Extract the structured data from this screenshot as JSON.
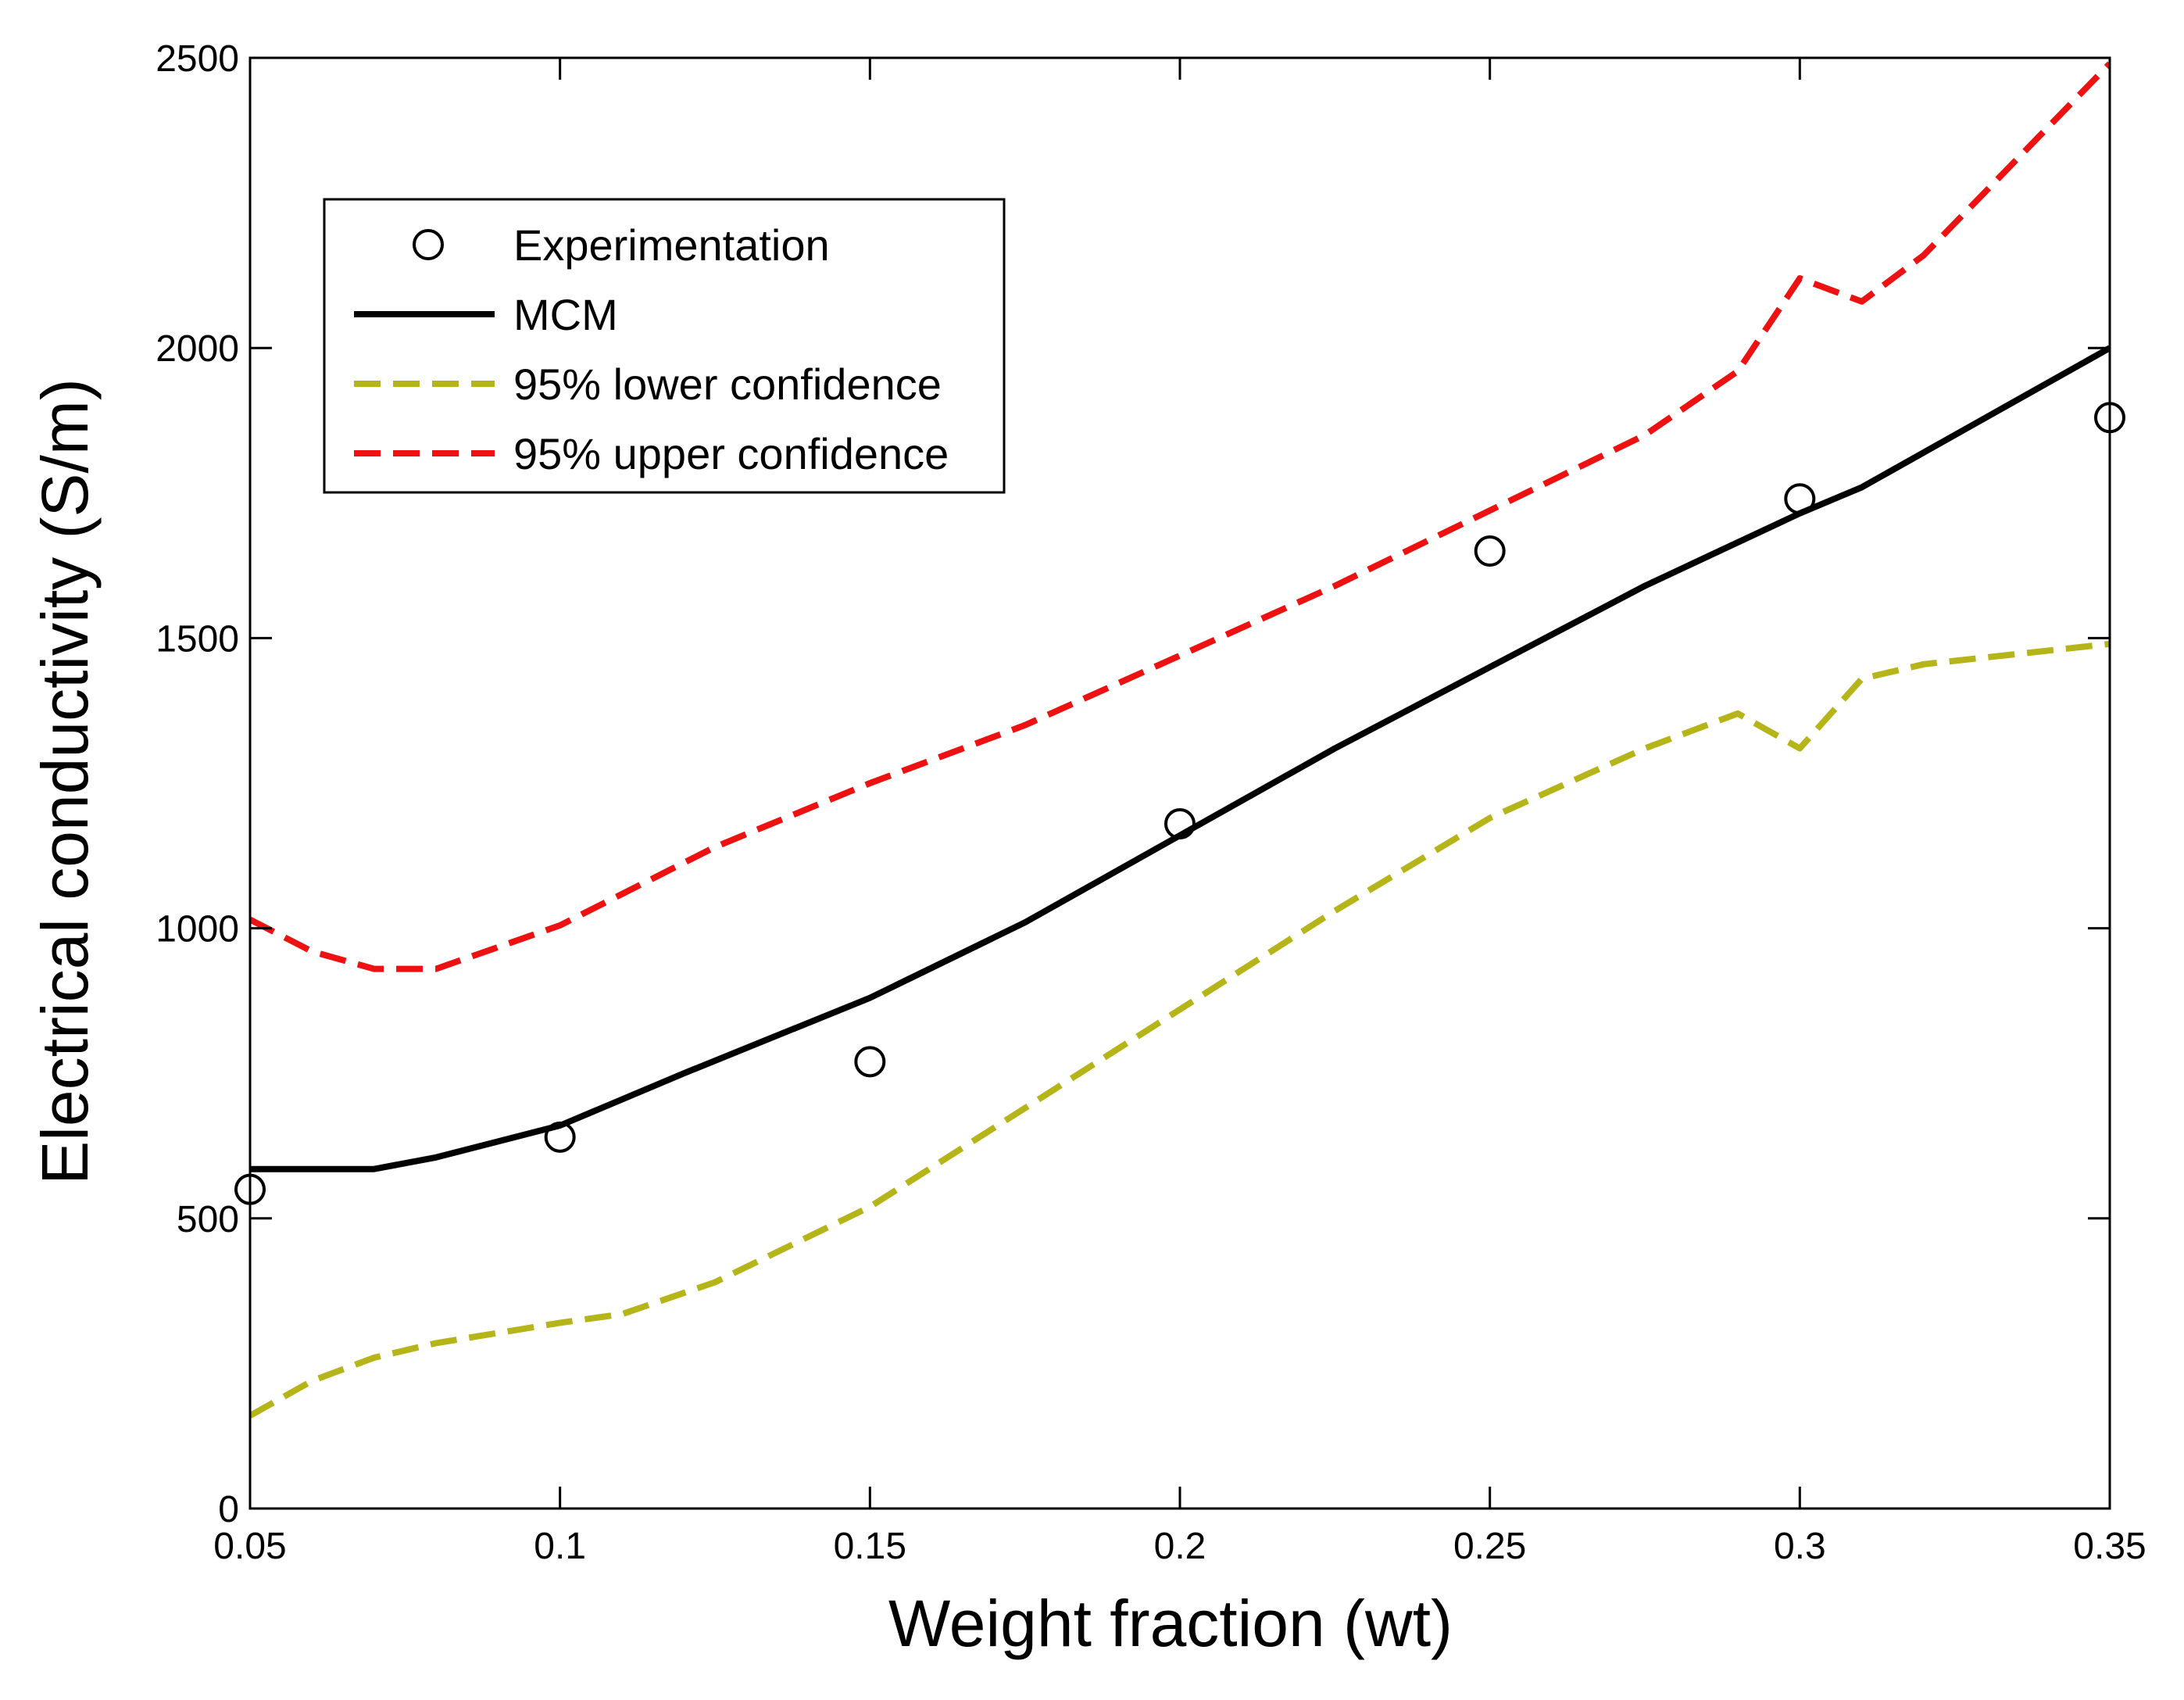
{
  "chart_data": {
    "type": "line",
    "title": "",
    "xlabel": "Weight fraction (wt)",
    "ylabel": "Electrical conductivity (S/m)",
    "xlim": [
      0.05,
      0.35
    ],
    "ylim": [
      0,
      2500
    ],
    "x_ticks": [
      0.05,
      0.1,
      0.15,
      0.2,
      0.25,
      0.3,
      0.35
    ],
    "x_tick_labels": [
      "0.05",
      "0.1",
      "0.15",
      "0.2",
      "0.25",
      "0.3",
      "0.35"
    ],
    "y_ticks": [
      0,
      500,
      1000,
      1500,
      2000,
      2500
    ],
    "y_tick_labels": [
      "0",
      "500",
      "1000",
      "1500",
      "2000",
      "2500"
    ],
    "grid": false,
    "legend_position": "top-left",
    "series": [
      {
        "name": "Experimentation",
        "kind": "scatter",
        "color": "#000000",
        "marker": "circle-open",
        "x": [
          0.05,
          0.1,
          0.15,
          0.2,
          0.25,
          0.3,
          0.35
        ],
        "y": [
          550,
          640,
          770,
          1180,
          1650,
          1740,
          1880
        ]
      },
      {
        "name": "MCM",
        "kind": "line",
        "color": "#000000",
        "dash": "solid",
        "x": [
          0.05,
          0.07,
          0.08,
          0.1,
          0.12,
          0.15,
          0.175,
          0.2,
          0.225,
          0.25,
          0.275,
          0.3,
          0.31,
          0.33,
          0.35
        ],
        "y": [
          585,
          585,
          605,
          660,
          750,
          880,
          1010,
          1160,
          1310,
          1450,
          1590,
          1715,
          1760,
          1880,
          2000
        ]
      },
      {
        "name": "95% lower confidence",
        "kind": "line",
        "color": "#b5b51a",
        "dash": "dashed",
        "x": [
          0.05,
          0.06,
          0.07,
          0.08,
          0.1,
          0.11,
          0.125,
          0.15,
          0.175,
          0.2,
          0.225,
          0.25,
          0.275,
          0.29,
          0.3,
          0.31,
          0.32,
          0.35
        ],
        "y": [
          160,
          220,
          260,
          285,
          320,
          335,
          390,
          520,
          690,
          860,
          1030,
          1190,
          1310,
          1370,
          1310,
          1430,
          1455,
          1490
        ]
      },
      {
        "name": "95% upper confidence",
        "kind": "line",
        "color": "#ee1111",
        "dash": "dashed",
        "x": [
          0.05,
          0.06,
          0.07,
          0.08,
          0.1,
          0.125,
          0.15,
          0.175,
          0.2,
          0.225,
          0.25,
          0.275,
          0.29,
          0.3,
          0.31,
          0.32,
          0.35
        ],
        "y": [
          1015,
          960,
          930,
          930,
          1005,
          1140,
          1250,
          1350,
          1470,
          1590,
          1720,
          1850,
          1960,
          2120,
          2080,
          2160,
          2490
        ]
      }
    ]
  }
}
